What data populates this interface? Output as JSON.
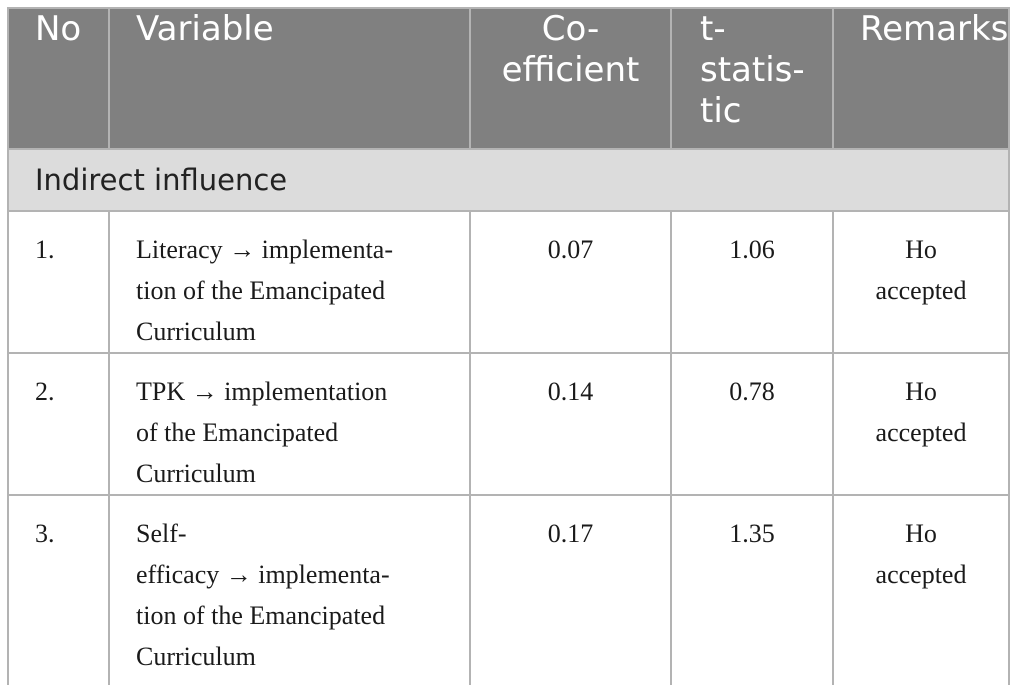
{
  "table": {
    "headers": {
      "no": "No",
      "variable": "Variable",
      "coefficient_lines": [
        "Co-",
        "efficient"
      ],
      "tstat_lines": [
        "t-",
        "statis-",
        "tic"
      ],
      "remarks": "Remarks"
    },
    "section_title": "Indirect influence",
    "rows": [
      {
        "no": "1.",
        "variable_lines": [
          "Literacy → implementa-",
          "tion of the Emancipated",
          "Curriculum"
        ],
        "coefficient": "0.07",
        "tstat": "1.06",
        "remarks_lines": [
          "Ho",
          "accepted"
        ]
      },
      {
        "no": "2.",
        "variable_lines": [
          "TPK → implementation",
          "of the Emancipated",
          "Curriculum"
        ],
        "coefficient": "0.14",
        "tstat": "0.78",
        "remarks_lines": [
          "Ho",
          "accepted"
        ]
      },
      {
        "no": "3.",
        "variable_lines": [
          "Self-",
          "efficacy → implementa-",
          "tion of the Emancipated",
          "Curriculum"
        ],
        "coefficient": "0.17",
        "tstat": "1.35",
        "remarks_lines": [
          "Ho",
          "accepted"
        ]
      }
    ]
  }
}
